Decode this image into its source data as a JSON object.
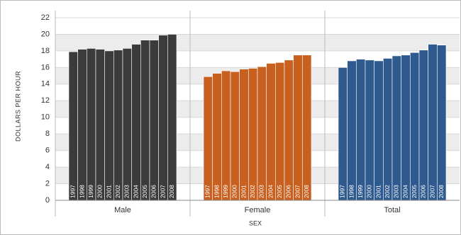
{
  "chart_data": {
    "type": "grouped-bar",
    "y_label": "DOLLARS PER HOUR",
    "x_label": "SEX",
    "categories": [
      "1997",
      "1998",
      "1999",
      "2000",
      "2001",
      "2002",
      "2003",
      "2004",
      "2005",
      "2006",
      "2007",
      "2008"
    ],
    "series": [
      {
        "name": "Male",
        "color": "#3b3b3b",
        "values": [
          17.9,
          18.2,
          18.3,
          18.2,
          18.0,
          18.1,
          18.3,
          18.8,
          19.3,
          19.3,
          19.9,
          20.0
        ]
      },
      {
        "name": "Female",
        "color": "#c8601f",
        "values": [
          14.9,
          15.3,
          15.6,
          15.5,
          15.8,
          15.9,
          16.1,
          16.5,
          16.6,
          16.9,
          17.5,
          17.5
        ]
      },
      {
        "name": "Total",
        "color": "#2f5a8f",
        "values": [
          16.0,
          16.8,
          17.0,
          16.9,
          16.8,
          17.1,
          17.4,
          17.5,
          17.8,
          18.1,
          18.8,
          18.7
        ]
      }
    ],
    "ylim": [
      0,
      22
    ],
    "yticks": [
      0,
      2,
      4,
      6,
      8,
      10,
      12,
      14,
      16,
      18,
      20,
      22
    ],
    "grid": true
  }
}
